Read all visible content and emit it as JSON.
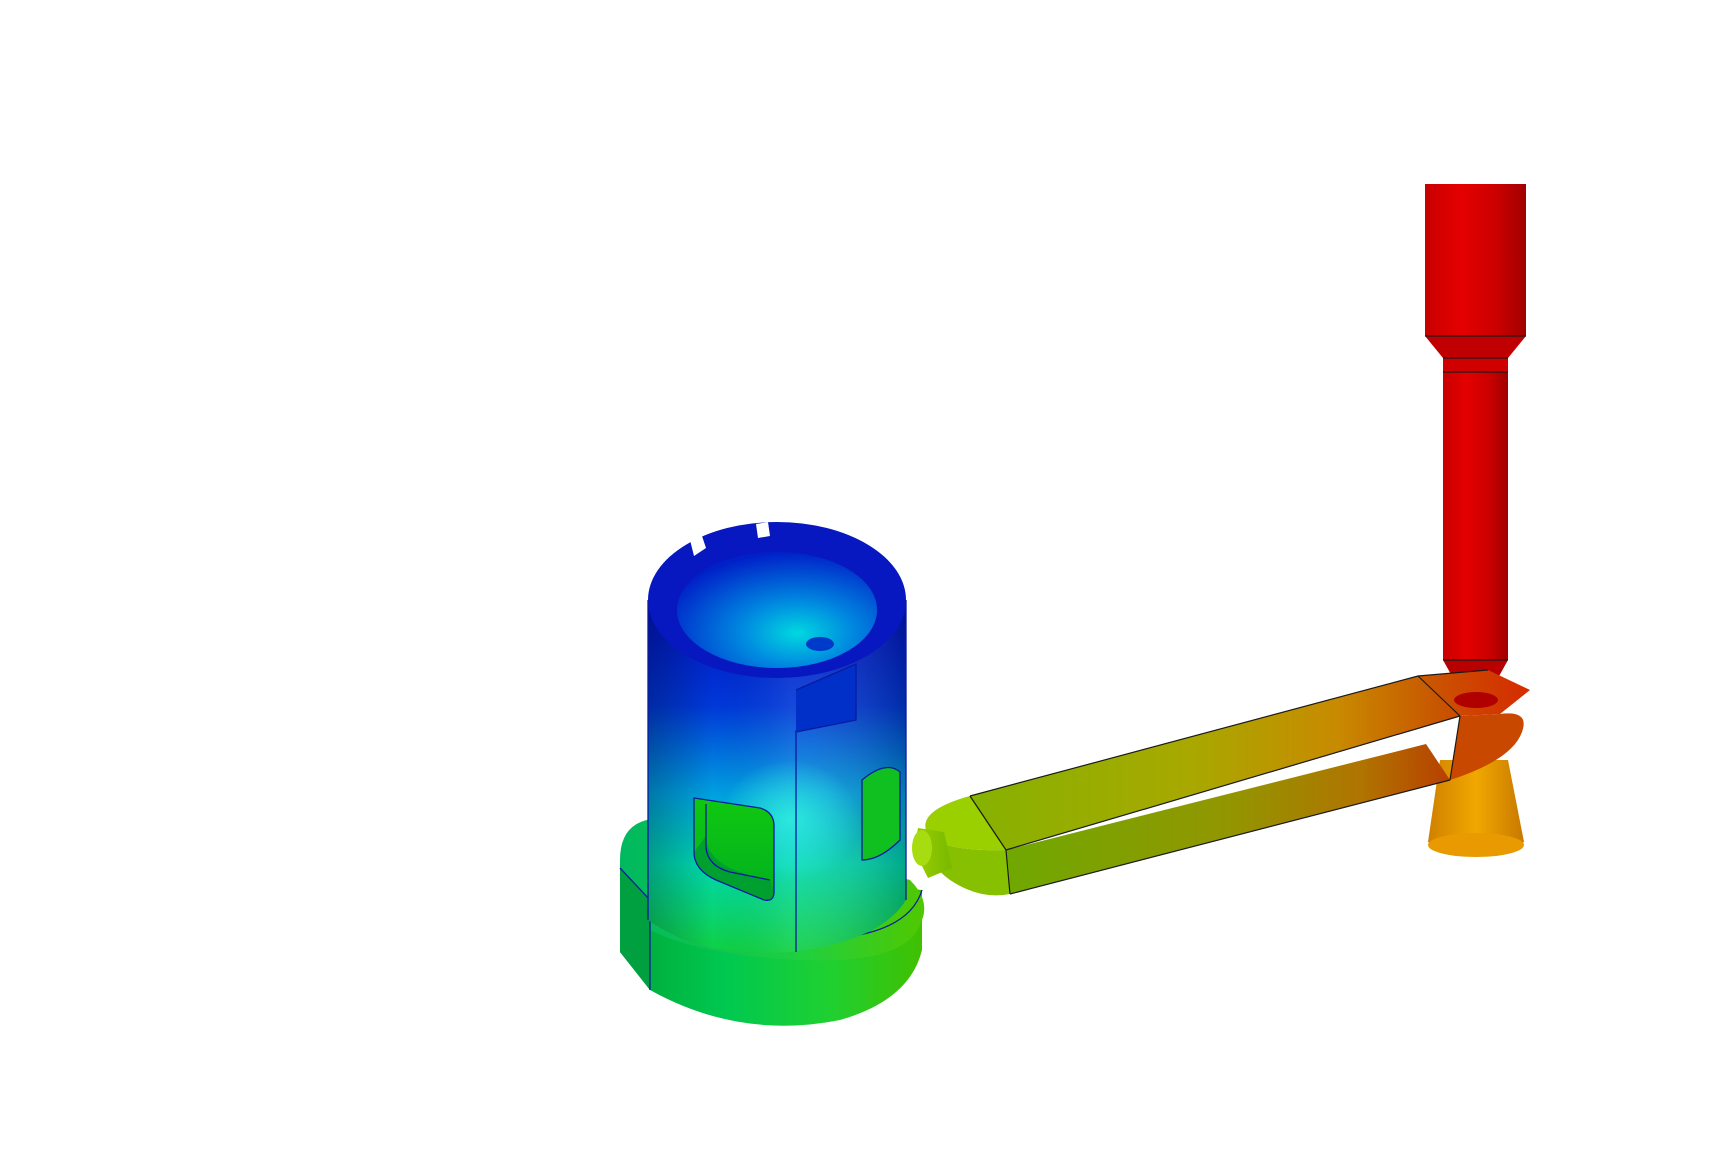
{
  "viewport": {
    "background": "#ffffff"
  },
  "model": {
    "color_map": {
      "low": "#0018c8",
      "low_mid": "#00c8d8",
      "mid": "#00d000",
      "mid_high": "#9aa800",
      "high": "#d80000"
    },
    "parts": [
      "sprue",
      "sprue-well",
      "runner-bar",
      "gate",
      "cylindrical-casting",
      "casting-base-flange"
    ]
  }
}
